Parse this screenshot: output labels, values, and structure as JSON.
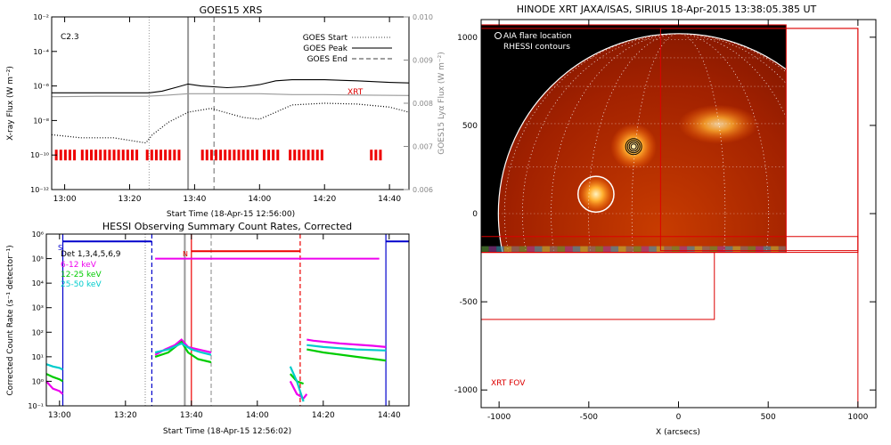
{
  "chart_data": [
    {
      "type": "line",
      "title": "GOES15 XRS",
      "xlabel": "Start Time (18-Apr-15 12:56:00)",
      "ylabel": "X-ray Flux (W m⁻²)",
      "ylabel_right": "GOES15 Lyα Flux (W m⁻²)",
      "xlim": [
        "12:56",
        "14:46"
      ],
      "ylim": [
        1e-12,
        0.01
      ],
      "ylim_right": [
        0.006,
        0.01
      ],
      "yscale": "log",
      "x_ticks": [
        "13:00",
        "13:20",
        "13:40",
        "14:00",
        "14:20",
        "14:40"
      ],
      "y_ticks": [
        "10⁻¹²",
        "10⁻¹⁰",
        "10⁻⁸",
        "10⁻⁶",
        "10⁻⁴",
        "10⁻²"
      ],
      "y_right_ticks": [
        "0.006",
        "0.007",
        "0.008",
        "0.009",
        "0.010"
      ],
      "class_label": "C2.3",
      "annotation": "XRT",
      "legend": [
        "GOES Start",
        "GOES Peak",
        "GOES End"
      ],
      "legend_position": "top-right",
      "markers": {
        "goes_start": "13:26",
        "goes_peak": "13:38",
        "goes_end": "13:46"
      },
      "series": [
        {
          "name": "",
          "axis": "left",
          "color": "#000000",
          "style": "solid",
          "x": [
            "12:56",
            "13:10",
            "13:20",
            "13:26",
            "13:30",
            "13:35",
            "13:38",
            "13:42",
            "13:50",
            "13:55",
            "14:00",
            "14:05",
            "14:10",
            "14:20",
            "14:30",
            "14:40",
            "14:46"
          ],
          "y": [
            4e-07,
            4e-07,
            4e-07,
            4e-07,
            5e-07,
            9e-07,
            1.3e-06,
            1e-06,
            8e-07,
            9e-07,
            1.2e-06,
            2e-06,
            2.3e-06,
            2.3e-06,
            2e-06,
            1.6e-06,
            1.5e-06
          ]
        },
        {
          "name": "",
          "axis": "left",
          "color": "#000000",
          "style": "dotted",
          "x": [
            "12:56",
            "13:05",
            "13:15",
            "13:25",
            "13:27",
            "13:32",
            "13:38",
            "13:45",
            "13:55",
            "14:00",
            "14:05",
            "14:10",
            "14:20",
            "14:30",
            "14:40",
            "14:46"
          ],
          "y": [
            1.5e-09,
            1e-09,
            1e-09,
            5e-10,
            1.5e-09,
            8e-09,
            3e-08,
            5e-08,
            1.5e-08,
            1.2e-08,
            3e-08,
            8e-08,
            1e-07,
            9e-08,
            6e-08,
            3e-08
          ]
        },
        {
          "name": "",
          "axis": "right",
          "color": "#999999",
          "style": "solid",
          "x": [
            "12:56",
            "13:10",
            "13:25",
            "13:30",
            "13:38",
            "13:45",
            "14:00",
            "14:10",
            "14:20",
            "14:30",
            "14:46"
          ],
          "y": [
            0.00815,
            0.00816,
            0.00816,
            0.00818,
            0.00822,
            0.00822,
            0.00822,
            0.0082,
            0.0082,
            0.00819,
            0.00818
          ]
        }
      ],
      "rhessi_coverage": {
        "color": "#ee0000",
        "intervals": [
          [
            "12:57",
            "13:03"
          ],
          [
            "13:05",
            "13:23"
          ],
          [
            "13:25",
            "13:36"
          ],
          [
            "13:42",
            "13:59"
          ],
          [
            "14:01",
            "14:06"
          ],
          [
            "14:09",
            "14:20"
          ],
          [
            "14:34",
            "14:38"
          ]
        ]
      }
    },
    {
      "type": "line",
      "title": "HESSI Observing Summary Count Rates, Corrected",
      "xlabel": "Start Time (18-Apr-15 12:56:02)",
      "ylabel": "Corrected Count Rate (s⁻¹ detector⁻¹)",
      "xlim": [
        "12:56",
        "14:46"
      ],
      "ylim": [
        0.1,
        1000000.0
      ],
      "yscale": "log",
      "x_ticks": [
        "13:00",
        "13:20",
        "13:40",
        "14:00",
        "14:20",
        "14:40"
      ],
      "y_ticks": [
        "10⁻¹",
        "10⁰",
        "10¹",
        "10²",
        "10³",
        "10⁴",
        "10⁵",
        "10⁶"
      ],
      "annotation": "Det 1,3,4,5,6,9",
      "flag_labels": {
        "S": "S",
        "N": "N"
      },
      "series": [
        {
          "name": "6-12 keV",
          "color": "#ee00ee",
          "segments": [
            {
              "x": [
                "12:56",
                "12:58",
                "13:00",
                "13:01"
              ],
              "y": [
                1,
                0.5,
                0.4,
                0.3
              ]
            },
            {
              "x": [
                "13:29",
                "13:32",
                "13:35",
                "13:37",
                "13:39",
                "13:42",
                "13:46"
              ],
              "y": [
                12,
                20,
                30,
                50,
                25,
                20,
                15
              ]
            },
            {
              "x": [
                "14:10",
                "14:12",
                "14:13",
                "14:14",
                "14:15"
              ],
              "y": [
                1,
                0.3,
                0.25,
                0.2,
                0.3
              ]
            },
            {
              "x": [
                "14:15",
                "14:17",
                "14:25",
                "14:35",
                "14:39"
              ],
              "y": [
                50,
                45,
                35,
                28,
                25
              ]
            }
          ]
        },
        {
          "name": "12-25 keV",
          "color": "#00cc00",
          "segments": [
            {
              "x": [
                "12:56",
                "12:58",
                "13:00",
                "13:01"
              ],
              "y": [
                2,
                1.5,
                1.2,
                1
              ]
            },
            {
              "x": [
                "13:29",
                "13:33",
                "13:37",
                "13:39",
                "13:42",
                "13:46"
              ],
              "y": [
                10,
                15,
                40,
                15,
                8,
                6
              ]
            },
            {
              "x": [
                "14:10",
                "14:12",
                "14:14"
              ],
              "y": [
                2,
                1,
                0.8
              ]
            },
            {
              "x": [
                "14:15",
                "14:20",
                "14:30",
                "14:39"
              ],
              "y": [
                20,
                15,
                10,
                7
              ]
            }
          ]
        },
        {
          "name": "25-50 keV",
          "color": "#00cccc",
          "segments": [
            {
              "x": [
                "12:56",
                "12:58",
                "13:00",
                "13:01"
              ],
              "y": [
                5,
                4,
                3.5,
                3
              ]
            },
            {
              "x": [
                "13:29",
                "13:33",
                "13:37",
                "13:40",
                "13:43",
                "13:46"
              ],
              "y": [
                15,
                20,
                35,
                20,
                15,
                12
              ]
            },
            {
              "x": [
                "14:10",
                "14:12",
                "14:14"
              ],
              "y": [
                4,
                1,
                0.15
              ]
            },
            {
              "x": [
                "14:15",
                "14:20",
                "14:30",
                "14:39"
              ],
              "y": [
                30,
                25,
                20,
                18
              ]
            }
          ]
        }
      ],
      "flags": [
        {
          "name": "SAA",
          "color": "#0000cc",
          "segments": [
            {
              "x": [
                "13:01",
                "13:28"
              ],
              "y": 500000.0
            },
            {
              "x": [
                "14:39",
                "14:46"
              ],
              "y": 500000.0
            }
          ]
        },
        {
          "name": "night",
          "color": "#ee0000",
          "segments": [
            {
              "x": [
                "13:40",
                "14:13"
              ],
              "y": 200000.0
            }
          ]
        },
        {
          "name": "6-12 keV level",
          "color": "#ee00ee",
          "segments": [
            {
              "x": [
                "13:29",
                "14:37"
              ],
              "y": 100000.0
            }
          ]
        }
      ],
      "vertical_markers": [
        {
          "x": "13:01",
          "color": "#0000cc",
          "style": "solid"
        },
        {
          "x": "13:28",
          "color": "#0000cc",
          "style": "dashed"
        },
        {
          "x": "14:39",
          "color": "#0000cc",
          "style": "solid"
        },
        {
          "x": "13:40",
          "color": "#ee0000",
          "style": "solid"
        },
        {
          "x": "14:13",
          "color": "#ee0000",
          "style": "dashed"
        },
        {
          "x": "13:26",
          "color": "#999999",
          "style": "dotted"
        },
        {
          "x": "13:38",
          "color": "#999999",
          "style": "solid"
        },
        {
          "x": "13:46",
          "color": "#999999",
          "style": "dashed"
        }
      ]
    },
    {
      "type": "image",
      "title": "HINODE XRT JAXA/ISAS, SIRIUS 18-Apr-2015 13:38:05.385 UT",
      "xlabel": "X (arcsecs)",
      "ylabel": "",
      "xlim": [
        -1100,
        1100
      ],
      "ylim": [
        -1100,
        1100
      ],
      "x_ticks": [
        "-1000",
        "-500",
        "0",
        "500",
        "1000"
      ],
      "y_ticks": [
        "-1000",
        "-500",
        "0",
        "500",
        "1000"
      ],
      "legend": [
        "AIA flare location",
        "RHESSI contours"
      ],
      "legend_position": "top-left",
      "fov_label": "XRT FOV",
      "flare_location": {
        "x": -460,
        "y": 110,
        "radius": 100
      },
      "rhessi_contour_center": {
        "x": -250,
        "y": 380
      },
      "image_extent": {
        "x": [
          -1100,
          600
        ],
        "y": [
          -220,
          1070
        ]
      },
      "limb_center": {
        "x": 0,
        "y": 0
      },
      "limb_radius": 1004,
      "fov_boxes": [
        {
          "x": [
            -1100,
            1000
          ],
          "y": [
            -1100,
            1050
          ]
        },
        {
          "x": [
            -1100,
            600
          ],
          "y": [
            -220,
            1070
          ]
        },
        {
          "x": [
            -1100,
            200
          ],
          "y": [
            -600,
            -220
          ]
        },
        {
          "x": [
            -100,
            1000
          ],
          "y": [
            -210,
            1050
          ]
        },
        {
          "x": [
            -1100,
            1000
          ],
          "y": [
            -220,
            -130
          ]
        }
      ],
      "colors": {
        "contour": "#000000",
        "fov": "#dd0000"
      }
    }
  ]
}
